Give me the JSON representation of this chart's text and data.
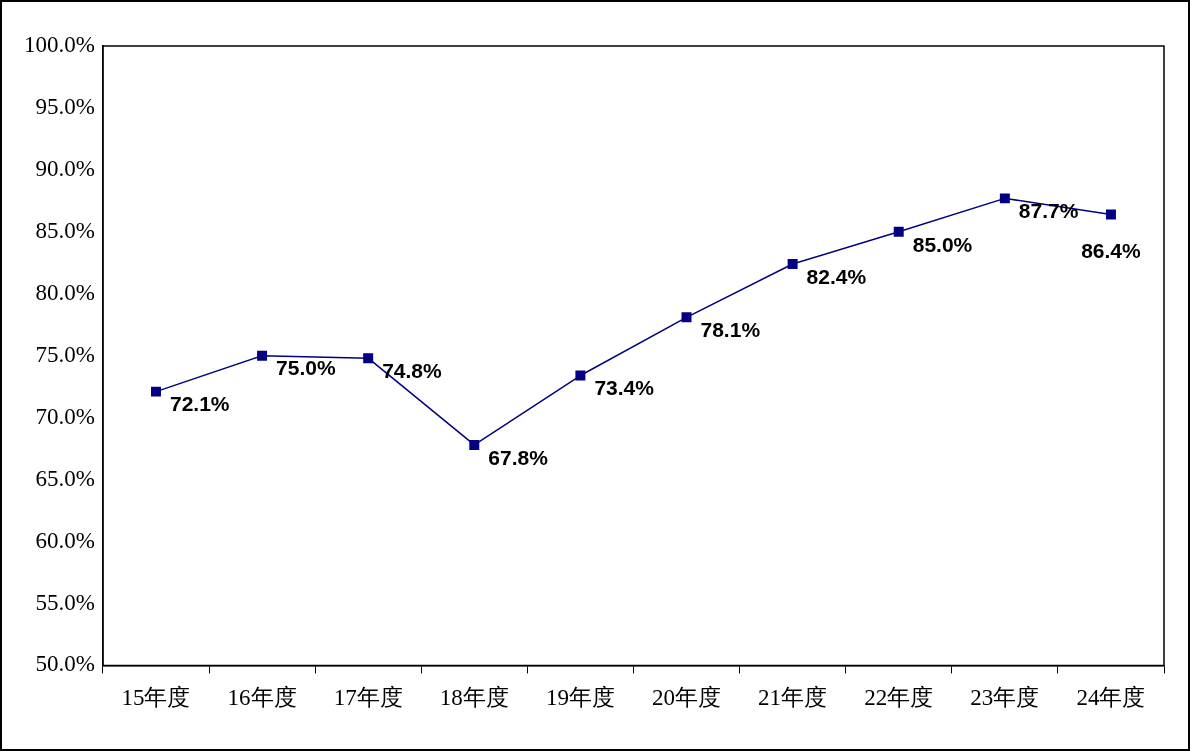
{
  "chart_data": {
    "type": "line",
    "categories": [
      "15年度",
      "16年度",
      "17年度",
      "18年度",
      "19年度",
      "20年度",
      "21年度",
      "22年度",
      "23年度",
      "24年度"
    ],
    "series": [
      {
        "color": "#000080",
        "values": [
          72.1,
          75.0,
          74.8,
          67.8,
          73.4,
          78.1,
          82.4,
          85.0,
          87.7,
          86.4
        ],
        "value_labels": [
          "72.1%",
          "75.0%",
          "74.8%",
          "67.8%",
          "73.4%",
          "78.1%",
          "82.4%",
          "85.0%",
          "87.7%",
          "86.4%"
        ]
      }
    ],
    "ylim": [
      50,
      100
    ],
    "yticks": [
      {
        "value": 50,
        "label": "50.0%"
      },
      {
        "value": 55,
        "label": "55.0%"
      },
      {
        "value": 60,
        "label": "60.0%"
      },
      {
        "value": 65,
        "label": "65.0%"
      },
      {
        "value": 70,
        "label": "70.0%"
      },
      {
        "value": 75,
        "label": "75.0%"
      },
      {
        "value": 80,
        "label": "80.0%"
      },
      {
        "value": 85,
        "label": "85.0%"
      },
      {
        "value": 90,
        "label": "90.0%"
      },
      {
        "value": 95,
        "label": "95.0%"
      },
      {
        "value": 100,
        "label": "100.0%"
      }
    ],
    "grid": false,
    "legend": false,
    "marker": "square",
    "line_style": "solid"
  }
}
